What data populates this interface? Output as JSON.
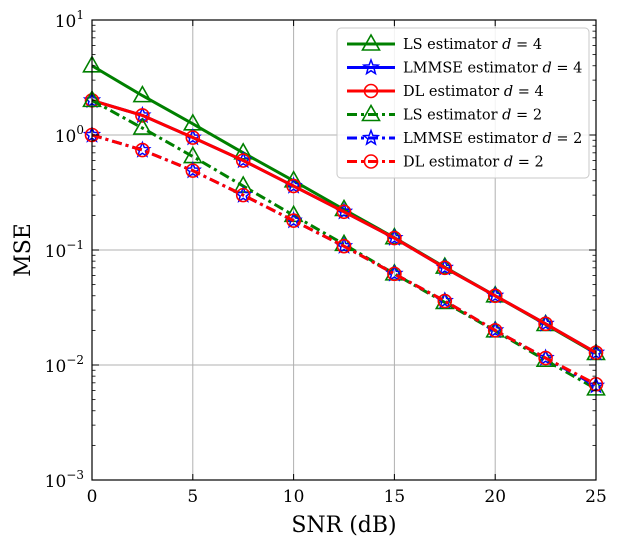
{
  "chart_data": {
    "type": "line",
    "xlabel": "SNR (dB)",
    "ylabel": "MSE",
    "xlim": [
      0,
      25
    ],
    "ylim": [
      0.001,
      10
    ],
    "yscale": "log",
    "grid": true,
    "legend_position": "top-right",
    "x_ticks": [
      {
        "value": 0,
        "label": "0"
      },
      {
        "value": 5,
        "label": "5"
      },
      {
        "value": 10,
        "label": "10"
      },
      {
        "value": 15,
        "label": "15"
      },
      {
        "value": 20,
        "label": "20"
      },
      {
        "value": 25,
        "label": "25"
      }
    ],
    "y_ticks": [
      {
        "value": 0.001,
        "mantissa": "10",
        "exponent": "−3"
      },
      {
        "value": 0.01,
        "mantissa": "10",
        "exponent": "−2"
      },
      {
        "value": 0.1,
        "mantissa": "10",
        "exponent": "−1"
      },
      {
        "value": 1,
        "mantissa": "10",
        "exponent": "0"
      },
      {
        "value": 10,
        "mantissa": "10",
        "exponent": "1"
      }
    ],
    "x": [
      0,
      2.5,
      5,
      7.5,
      10,
      12.5,
      15,
      17.5,
      20,
      22.5,
      25
    ],
    "series": [
      {
        "name": "LS estimator d = 4",
        "label_text": "LS estimator ",
        "label_var": "d",
        "label_eq": " = 4",
        "color": "#008000",
        "linestyle": "solid",
        "marker": "triangle",
        "values": [
          4.0,
          2.2,
          1.25,
          0.7,
          0.4,
          0.225,
          0.128,
          0.071,
          0.04,
          0.0225,
          0.0126
        ]
      },
      {
        "name": "LMMSE estimator d = 4",
        "label_text": "LMMSE estimator ",
        "label_var": "d",
        "label_eq": " = 4",
        "color": "#0000ff",
        "linestyle": "solid",
        "marker": "star",
        "values": [
          2.0,
          1.48,
          0.95,
          0.6,
          0.36,
          0.215,
          0.127,
          0.07,
          0.04,
          0.0228,
          0.0128
        ]
      },
      {
        "name": "DL estimator d = 4",
        "label_text": "DL estimator ",
        "label_var": "d",
        "label_eq": " = 4",
        "color": "#ff0000",
        "linestyle": "solid",
        "marker": "circle",
        "values": [
          2.0,
          1.48,
          0.95,
          0.6,
          0.36,
          0.215,
          0.127,
          0.07,
          0.04,
          0.0228,
          0.0128
        ]
      },
      {
        "name": "LS estimator d = 2",
        "label_text": "LS estimator ",
        "label_var": "d",
        "label_eq": " = 2",
        "color": "#008000",
        "linestyle": "dashdot",
        "marker": "triangle",
        "values": [
          2.0,
          1.15,
          0.65,
          0.36,
          0.2,
          0.112,
          0.062,
          0.035,
          0.0198,
          0.011,
          0.0062
        ]
      },
      {
        "name": "LMMSE estimator d = 2",
        "label_text": "LMMSE estimator ",
        "label_var": "d",
        "label_eq": " = 2",
        "color": "#0000ff",
        "linestyle": "dashdot",
        "marker": "star",
        "values": [
          1.0,
          0.74,
          0.49,
          0.3,
          0.18,
          0.108,
          0.062,
          0.036,
          0.02,
          0.0115,
          0.0066
        ]
      },
      {
        "name": "DL estimator d = 2",
        "label_text": "DL estimator ",
        "label_var": "d",
        "label_eq": " = 2",
        "color": "#ff0000",
        "linestyle": "dashdot",
        "marker": "circle",
        "values": [
          1.0,
          0.74,
          0.49,
          0.3,
          0.18,
          0.108,
          0.062,
          0.036,
          0.02,
          0.0115,
          0.0068
        ]
      }
    ]
  }
}
